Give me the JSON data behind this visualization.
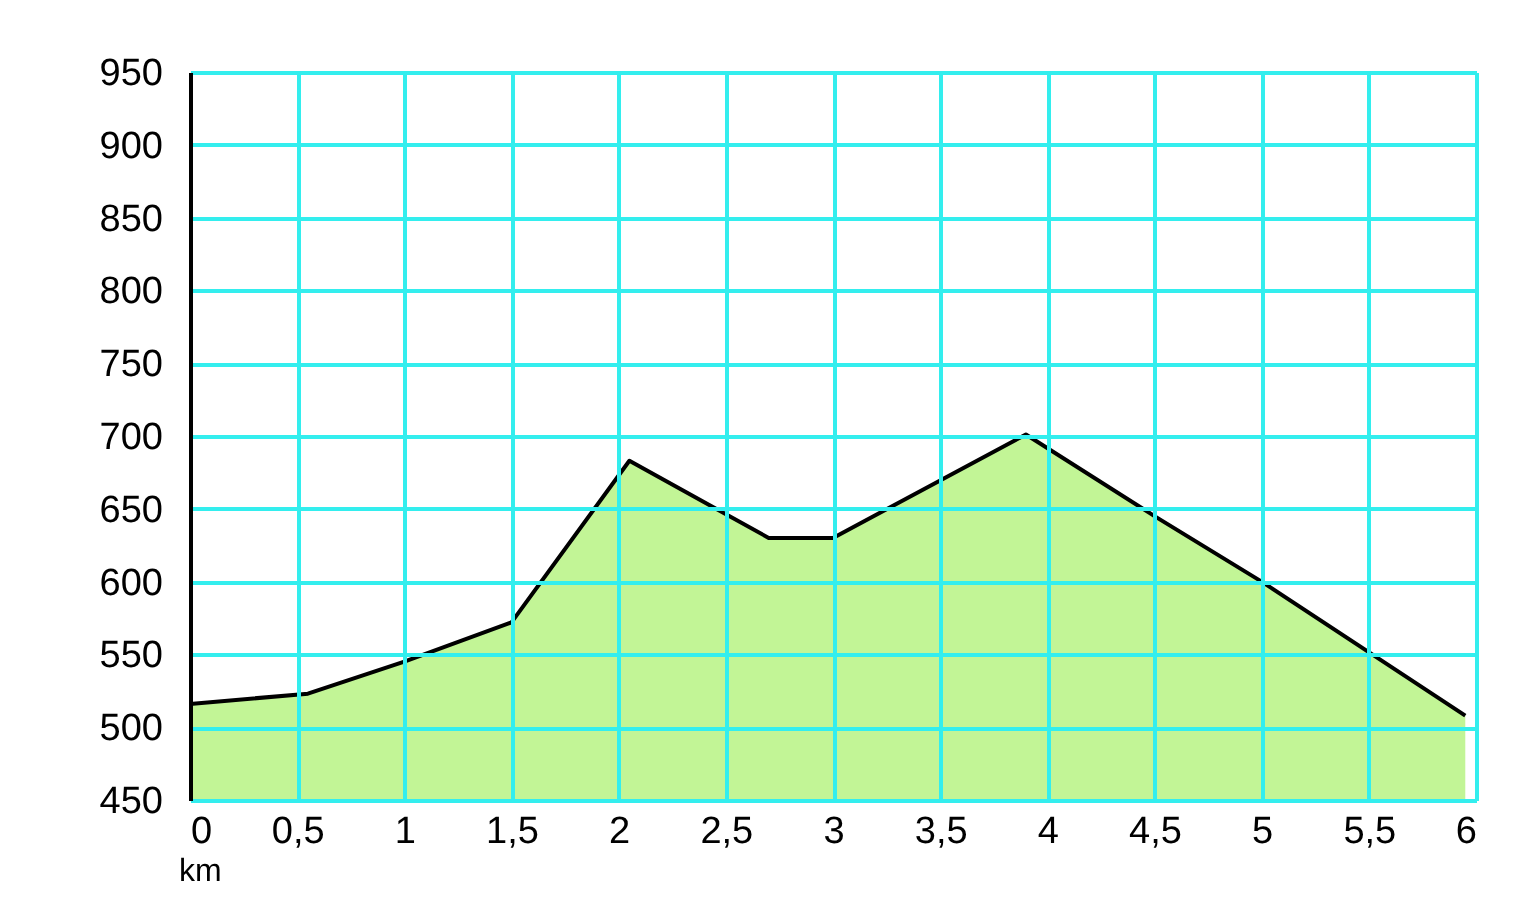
{
  "chart_data": {
    "type": "area",
    "xlabel": "km",
    "x": [
      0,
      0.55,
      1,
      1.5,
      2.05,
      2.7,
      3,
      3.9,
      4.5,
      5,
      5.95
    ],
    "series": [
      {
        "color": "#c2f596",
        "values": [
          516,
          523,
          545,
          572,
          683,
          630,
          630,
          701,
          645,
          600,
          508
        ]
      }
    ],
    "xlim": [
      0,
      6
    ],
    "xticks": [
      0,
      {
        "value": 0.5,
        "label": "0,5"
      },
      1,
      {
        "value": 1.5,
        "label": "1,5"
      },
      2,
      {
        "value": 2.5,
        "label": "2,5"
      },
      3,
      {
        "value": 3.5,
        "label": "3,5"
      },
      4,
      {
        "value": 4.5,
        "label": "4,5"
      },
      5,
      {
        "value": 5.5,
        "label": "5,5"
      },
      6
    ],
    "ylim": [
      450,
      950
    ],
    "yticks": [
      450,
      500,
      550,
      600,
      650,
      700,
      750,
      800,
      850,
      900,
      950
    ],
    "grid": true
  }
}
